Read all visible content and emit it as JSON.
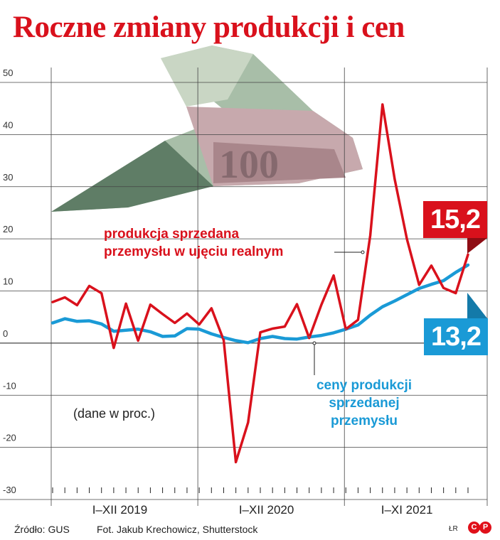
{
  "header": {
    "title": "Roczne zmiany produkcji i cen"
  },
  "chart_data": {
    "type": "line",
    "yticks": [
      "50",
      "40",
      "30",
      "20",
      "10",
      "0",
      "-10",
      "-20",
      "-30"
    ],
    "ylim": [
      -30,
      50
    ],
    "grid": true,
    "x_group_labels": [
      "I–XII 2019",
      "I–XII 2020",
      "I–XI 2021"
    ],
    "series": [
      {
        "name": "produkcja sprzedana przemysłu w ujęciu realnym",
        "color": "#d9111c",
        "values": [
          6.1,
          7.0,
          5.5,
          9.2,
          7.8,
          -2.7,
          5.8,
          -1.3,
          5.6,
          3.8,
          2.1,
          3.9,
          1.8,
          4.9,
          -1.2,
          -24.6,
          -17.0,
          0.3,
          1.0,
          1.4,
          5.7,
          -0.8,
          5.6,
          11.2,
          0.9,
          2.7,
          18.9,
          44.0,
          29.7,
          18.2,
          9.4,
          13.1,
          8.8,
          7.8,
          15.2
        ],
        "last_label": "15,2"
      },
      {
        "name": "ceny produkcji sprzedanej przemysłu",
        "color": "#1a9ad6",
        "values": [
          2.1,
          2.9,
          2.4,
          2.5,
          1.9,
          0.5,
          0.7,
          0.9,
          0.4,
          -0.5,
          -0.4,
          1.0,
          0.9,
          0.0,
          -0.7,
          -1.3,
          -1.7,
          -0.9,
          -0.5,
          -0.9,
          -1.0,
          -0.6,
          -0.3,
          0.2,
          0.9,
          1.7,
          3.6,
          5.2,
          6.3,
          7.5,
          8.7,
          9.5,
          10.2,
          11.8,
          13.2
        ],
        "last_label": "13,2"
      }
    ]
  },
  "labels": {
    "production_line1": "produkcja sprzedana",
    "production_line2": "przemysłu w ujęciu realnym",
    "prices_line1": "ceny produkcji",
    "prices_line2": "sprzedanej",
    "prices_line3": "przemysłu",
    "note": "(dane w proc.)"
  },
  "footer": {
    "source": "Źródło: GUS",
    "credit": "Fot. Jakub Krechowicz, Shutterstock",
    "author": "ŁR",
    "logo_c": "C",
    "logo_p": "P"
  }
}
